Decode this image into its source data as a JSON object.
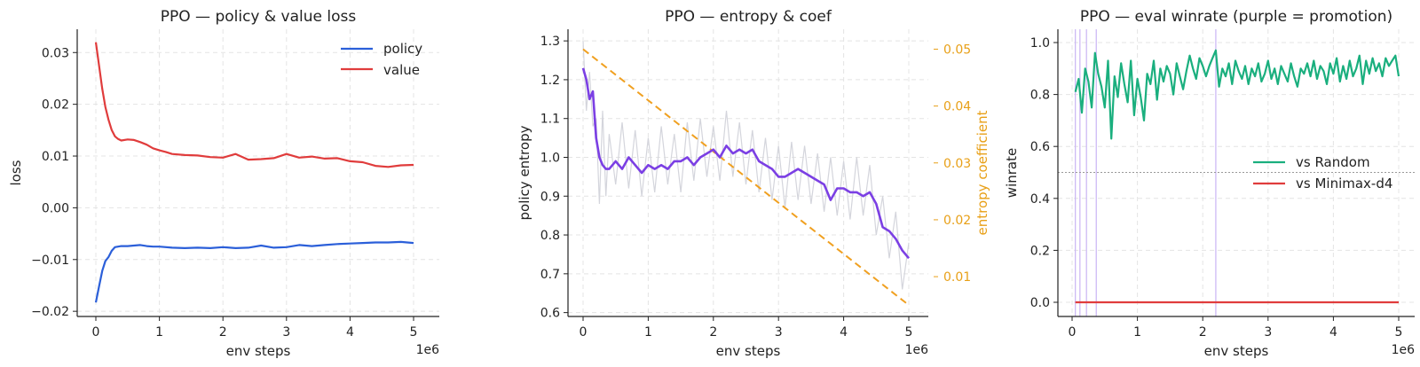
{
  "chart_data": [
    {
      "type": "line",
      "title": "PPO — policy & value loss",
      "xlabel": "env steps",
      "ylabel": "loss",
      "x_offset_label": "1e6",
      "xlim": [
        0,
        5
      ],
      "ylim": [
        -0.021,
        0.0345
      ],
      "x_ticks": [
        0,
        1,
        2,
        3,
        4,
        5
      ],
      "x_tick_labels": [
        "0",
        "1",
        "2",
        "3",
        "4",
        "5"
      ],
      "y_ticks": [
        -0.02,
        -0.01,
        0.0,
        0.01,
        0.02,
        0.03
      ],
      "y_tick_labels": [
        "−0.02",
        "−0.01",
        "0.00",
        "0.01",
        "0.02",
        "0.03"
      ],
      "grid": true,
      "legend_position": "top-right",
      "series": [
        {
          "name": "policy",
          "color": "#2b5fd9",
          "x": [
            0,
            0.05,
            0.1,
            0.15,
            0.2,
            0.25,
            0.3,
            0.4,
            0.5,
            0.6,
            0.7,
            0.8,
            0.9,
            1.0,
            1.2,
            1.4,
            1.6,
            1.8,
            2.0,
            2.2,
            2.4,
            2.6,
            2.8,
            3.0,
            3.2,
            3.4,
            3.6,
            3.8,
            4.0,
            4.2,
            4.4,
            4.6,
            4.8,
            5.0
          ],
          "values": [
            -0.0183,
            -0.0152,
            -0.0122,
            -0.0103,
            -0.0095,
            -0.0083,
            -0.0076,
            -0.0074,
            -0.0074,
            -0.0073,
            -0.0072,
            -0.0074,
            -0.0075,
            -0.0075,
            -0.0077,
            -0.0078,
            -0.0077,
            -0.0078,
            -0.0076,
            -0.0078,
            -0.0077,
            -0.0073,
            -0.0077,
            -0.0076,
            -0.0072,
            -0.0074,
            -0.0072,
            -0.007,
            -0.0069,
            -0.0068,
            -0.0067,
            -0.0067,
            -0.0066,
            -0.0068
          ]
        },
        {
          "name": "value",
          "color": "#e03c3c",
          "x": [
            0,
            0.05,
            0.1,
            0.15,
            0.2,
            0.25,
            0.3,
            0.35,
            0.4,
            0.5,
            0.6,
            0.7,
            0.8,
            0.9,
            1.0,
            1.1,
            1.2,
            1.4,
            1.6,
            1.8,
            2.0,
            2.2,
            2.4,
            2.6,
            2.8,
            3.0,
            3.2,
            3.4,
            3.6,
            3.8,
            4.0,
            4.2,
            4.4,
            4.6,
            4.8,
            5.0
          ],
          "values": [
            0.032,
            0.0275,
            0.023,
            0.0195,
            0.017,
            0.015,
            0.0138,
            0.0133,
            0.013,
            0.0132,
            0.0131,
            0.0127,
            0.0122,
            0.0115,
            0.0111,
            0.0108,
            0.0104,
            0.0102,
            0.0101,
            0.0098,
            0.0097,
            0.0104,
            0.0093,
            0.0094,
            0.0096,
            0.0104,
            0.0097,
            0.0099,
            0.0095,
            0.0096,
            0.009,
            0.0088,
            0.0081,
            0.0079,
            0.0082,
            0.0083
          ]
        }
      ]
    },
    {
      "type": "line",
      "title": "PPO — entropy & coef",
      "xlabel": "env steps",
      "ylabel": "policy entropy",
      "ylabel_right": "entropy coefficient",
      "x_offset_label": "1e6",
      "xlim": [
        0,
        5
      ],
      "ylim": [
        0.59,
        1.33
      ],
      "ylim_right": [
        0.003,
        0.0535
      ],
      "x_ticks": [
        0,
        1,
        2,
        3,
        4,
        5
      ],
      "x_tick_labels": [
        "0",
        "1",
        "2",
        "3",
        "4",
        "5"
      ],
      "y_ticks": [
        0.6,
        0.7,
        0.8,
        0.9,
        1.0,
        1.1,
        1.2,
        1.3
      ],
      "y_tick_labels": [
        "0.6",
        "0.7",
        "0.8",
        "0.9",
        "1.0",
        "1.1",
        "1.2",
        "1.3"
      ],
      "y_ticks_right": [
        0.01,
        0.02,
        0.03,
        0.04,
        0.05
      ],
      "y_tick_labels_right": [
        "0.01",
        "0.02",
        "0.03",
        "0.04",
        "0.05"
      ],
      "grid": true,
      "colors": {
        "smoothed": "#7b3fe4",
        "raw": "#d4d5dc",
        "coef": "#f0a020",
        "right_axis": "#e8a018"
      },
      "smoothed_entropy": {
        "x": [
          0,
          0.05,
          0.1,
          0.15,
          0.2,
          0.25,
          0.3,
          0.35,
          0.4,
          0.5,
          0.6,
          0.7,
          0.8,
          0.9,
          1.0,
          1.1,
          1.2,
          1.3,
          1.4,
          1.5,
          1.6,
          1.7,
          1.8,
          1.9,
          2.0,
          2.1,
          2.2,
          2.3,
          2.4,
          2.5,
          2.6,
          2.7,
          2.8,
          2.9,
          3.0,
          3.1,
          3.2,
          3.3,
          3.4,
          3.5,
          3.6,
          3.7,
          3.8,
          3.9,
          4.0,
          4.1,
          4.2,
          4.3,
          4.4,
          4.5,
          4.6,
          4.7,
          4.8,
          4.9,
          5.0
        ],
        "values": [
          1.23,
          1.2,
          1.15,
          1.17,
          1.05,
          1.0,
          0.98,
          0.97,
          0.97,
          0.99,
          0.97,
          1.0,
          0.98,
          0.96,
          0.98,
          0.97,
          0.98,
          0.97,
          0.99,
          0.99,
          1.0,
          0.98,
          1.0,
          1.01,
          1.02,
          1.0,
          1.03,
          1.01,
          1.02,
          1.01,
          1.02,
          0.99,
          0.98,
          0.97,
          0.95,
          0.95,
          0.96,
          0.97,
          0.96,
          0.95,
          0.94,
          0.93,
          0.89,
          0.92,
          0.92,
          0.91,
          0.91,
          0.9,
          0.91,
          0.88,
          0.82,
          0.81,
          0.79,
          0.76,
          0.74
        ]
      },
      "raw_entropy": {
        "x": [
          0,
          0.05,
          0.1,
          0.15,
          0.2,
          0.25,
          0.3,
          0.35,
          0.4,
          0.5,
          0.6,
          0.7,
          0.8,
          0.9,
          1.0,
          1.1,
          1.2,
          1.3,
          1.4,
          1.5,
          1.6,
          1.7,
          1.8,
          1.9,
          2.0,
          2.1,
          2.2,
          2.3,
          2.4,
          2.5,
          2.6,
          2.7,
          2.8,
          2.9,
          3.0,
          3.1,
          3.2,
          3.3,
          3.4,
          3.5,
          3.6,
          3.7,
          3.8,
          3.9,
          4.0,
          4.1,
          4.2,
          4.3,
          4.4,
          4.5,
          4.6,
          4.7,
          4.8,
          4.9,
          5.0
        ],
        "values": [
          1.3,
          1.12,
          1.22,
          1.08,
          1.1,
          0.88,
          1.12,
          0.9,
          1.06,
          0.93,
          1.09,
          0.92,
          1.07,
          0.9,
          1.05,
          0.91,
          1.08,
          0.93,
          1.06,
          0.91,
          1.09,
          0.94,
          1.1,
          0.95,
          1.08,
          0.94,
          1.12,
          0.95,
          1.09,
          0.93,
          1.07,
          0.91,
          1.05,
          0.89,
          1.03,
          0.87,
          1.04,
          0.89,
          1.03,
          0.88,
          1.01,
          0.86,
          1.0,
          0.85,
          0.99,
          0.84,
          1.0,
          0.85,
          0.98,
          0.8,
          0.9,
          0.74,
          0.86,
          0.66,
          0.78
        ]
      },
      "entropy_coefficient": {
        "x": [
          0,
          5
        ],
        "values": [
          0.05,
          0.005
        ]
      }
    },
    {
      "type": "line",
      "title": "PPO — eval winrate (purple = promotion)",
      "xlabel": "env steps",
      "ylabel": "winrate",
      "x_offset_label": "1e6",
      "xlim": [
        -0.15,
        5.3
      ],
      "ylim": [
        -0.05,
        1.05
      ],
      "x_ticks": [
        0,
        1,
        2,
        3,
        4,
        5
      ],
      "x_tick_labels": [
        "0",
        "1",
        "2",
        "3",
        "4",
        "5"
      ],
      "y_ticks": [
        0.0,
        0.2,
        0.4,
        0.6,
        0.8,
        1.0
      ],
      "y_tick_labels": [
        "0.0",
        "0.2",
        "0.4",
        "0.6",
        "0.8",
        "1.0"
      ],
      "grid": true,
      "legend_position": "center-right",
      "reference_line": {
        "y": 0.5,
        "color": "#999999"
      },
      "promotion_lines": {
        "x": [
          0.05,
          0.12,
          0.22,
          0.37,
          2.2
        ],
        "color": "#c9b4f4"
      },
      "series": [
        {
          "name": "vs Random",
          "color": "#1aaf7e",
          "x": [
            0.05,
            0.1,
            0.15,
            0.2,
            0.25,
            0.3,
            0.35,
            0.4,
            0.45,
            0.5,
            0.55,
            0.6,
            0.65,
            0.7,
            0.75,
            0.8,
            0.85,
            0.9,
            0.95,
            1.0,
            1.05,
            1.1,
            1.15,
            1.2,
            1.25,
            1.3,
            1.35,
            1.4,
            1.45,
            1.5,
            1.55,
            1.6,
            1.65,
            1.7,
            1.75,
            1.8,
            1.85,
            1.9,
            1.95,
            2.0,
            2.05,
            2.1,
            2.15,
            2.2,
            2.25,
            2.3,
            2.35,
            2.4,
            2.45,
            2.5,
            2.55,
            2.6,
            2.65,
            2.7,
            2.75,
            2.8,
            2.85,
            2.9,
            2.95,
            3.0,
            3.05,
            3.1,
            3.15,
            3.2,
            3.25,
            3.3,
            3.35,
            3.4,
            3.45,
            3.5,
            3.55,
            3.6,
            3.65,
            3.7,
            3.75,
            3.8,
            3.85,
            3.9,
            3.95,
            4.0,
            4.05,
            4.1,
            4.15,
            4.2,
            4.25,
            4.3,
            4.35,
            4.4,
            4.45,
            4.5,
            4.55,
            4.6,
            4.65,
            4.7,
            4.75,
            4.8,
            4.85,
            4.9,
            4.95,
            5.0
          ],
          "values": [
            0.81,
            0.86,
            0.73,
            0.9,
            0.85,
            0.75,
            0.96,
            0.88,
            0.83,
            0.75,
            0.93,
            0.63,
            0.87,
            0.79,
            0.92,
            0.84,
            0.77,
            0.93,
            0.72,
            0.86,
            0.79,
            0.7,
            0.88,
            0.84,
            0.93,
            0.78,
            0.9,
            0.85,
            0.91,
            0.88,
            0.8,
            0.92,
            0.87,
            0.82,
            0.89,
            0.95,
            0.9,
            0.86,
            0.94,
            0.91,
            0.87,
            0.91,
            0.94,
            0.97,
            0.83,
            0.9,
            0.87,
            0.92,
            0.84,
            0.93,
            0.89,
            0.86,
            0.91,
            0.84,
            0.9,
            0.87,
            0.92,
            0.85,
            0.88,
            0.93,
            0.86,
            0.9,
            0.84,
            0.91,
            0.88,
            0.85,
            0.92,
            0.87,
            0.83,
            0.9,
            0.88,
            0.92,
            0.87,
            0.93,
            0.86,
            0.91,
            0.89,
            0.84,
            0.92,
            0.88,
            0.94,
            0.85,
            0.91,
            0.86,
            0.93,
            0.87,
            0.9,
            0.95,
            0.84,
            0.93,
            0.88,
            0.94,
            0.89,
            0.92,
            0.87,
            0.94,
            0.91,
            0.93,
            0.95,
            0.87
          ]
        },
        {
          "name": "vs Minimax-d4",
          "color": "#e03c3c",
          "x": [
            0.05,
            5.0
          ],
          "values": [
            0.0,
            0.0
          ]
        }
      ]
    }
  ]
}
